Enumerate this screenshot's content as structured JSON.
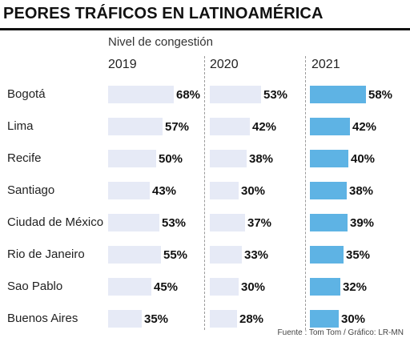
{
  "title": "PEORES TRÁFICOS EN LATINOAMÉRICA",
  "subtitle": "Nivel de congestión",
  "source": "Fuente : Tom Tom / Gráfico: LR-MN",
  "colors": {
    "light_bar": "#e6eaf6",
    "highlight_bar": "#5eb3e4"
  },
  "chart_data": {
    "type": "bar",
    "orientation": "horizontal",
    "unit": "%",
    "categories": [
      "Bogotá",
      "Lima",
      "Recife",
      "Santiago",
      "Ciudad de México",
      "Rio de Janeiro",
      "Sao Pablo",
      "Buenos Aires"
    ],
    "series": [
      {
        "name": "2019",
        "values": [
          68,
          57,
          50,
          43,
          53,
          55,
          45,
          35
        ],
        "labels": [
          "68%",
          "57%",
          "50%",
          "43%",
          "53%",
          "55%",
          "45%",
          "35%"
        ]
      },
      {
        "name": "2020",
        "values": [
          53,
          42,
          38,
          30,
          37,
          33,
          30,
          28
        ],
        "labels": [
          "53%",
          "42%",
          "38%",
          "30%",
          "37%",
          "33%",
          "30%",
          "28%"
        ]
      },
      {
        "name": "2021",
        "values": [
          58,
          42,
          40,
          38,
          39,
          35,
          32,
          30
        ],
        "labels": [
          "58%",
          "42%",
          "40%",
          "38%",
          "39%",
          "35%",
          "32%",
          "30%"
        ]
      }
    ],
    "highlight_series": "2021",
    "xlim": [
      0,
      70
    ],
    "grid": false
  }
}
